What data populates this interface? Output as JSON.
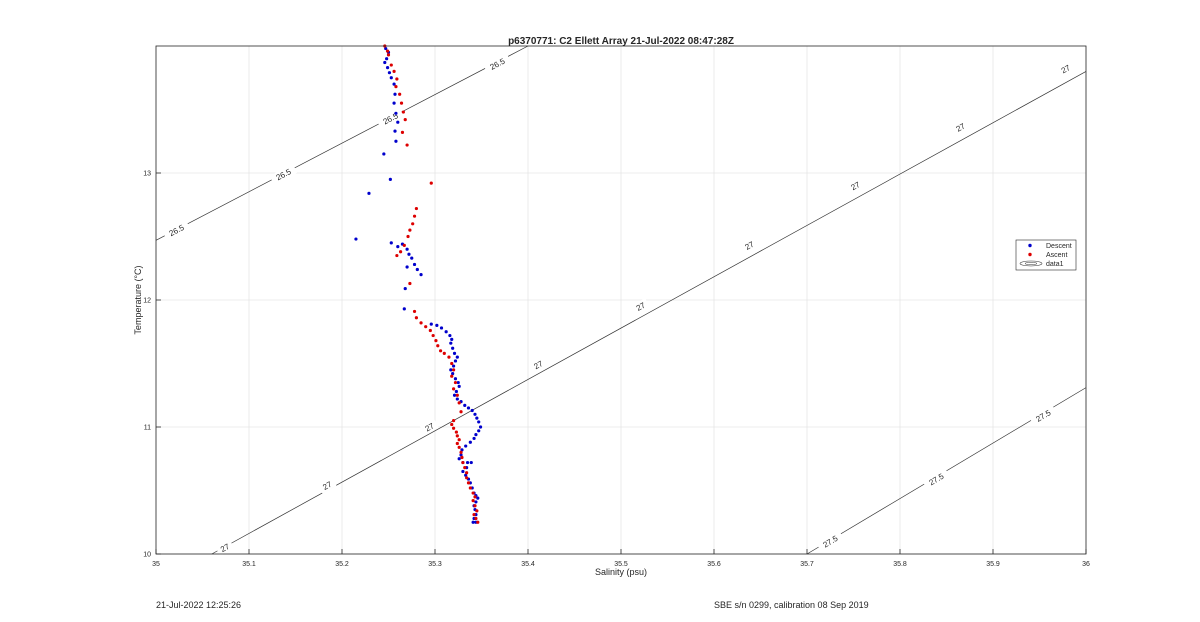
{
  "footer": {
    "left": "21-Jul-2022 12:25:26",
    "right": "SBE s/n 0299, calibration 08 Sep 2019"
  },
  "chart_data": {
    "type": "scatter",
    "title": "p6370771: C2 Ellett Array 21-Jul-2022 08:47:28Z",
    "xlabel": "Salinity (psu)",
    "ylabel": "Temperature (°C)",
    "xlim": [
      35,
      36
    ],
    "ylim": [
      10,
      14
    ],
    "x_ticks": [
      "35",
      "35.1",
      "35.2",
      "35.3",
      "35.4",
      "35.5",
      "35.6",
      "35.7",
      "35.8",
      "35.9",
      "36"
    ],
    "y_ticks": [
      "10",
      "11",
      "12",
      "13"
    ],
    "grid": true,
    "legend": {
      "placement": "right",
      "entries": [
        "Descent",
        "Ascent",
        "data1"
      ]
    },
    "colors": {
      "descent": "#0000cc",
      "ascent": "#dd0000",
      "contour": "#333333"
    },
    "contours": [
      {
        "label": "26.5",
        "points": [
          [
            35.0,
            12.47
          ],
          [
            35.4,
            14.0
          ]
        ],
        "label_positions": [
          [
            35.022,
            12.55
          ],
          [
            35.137,
            12.99
          ],
          [
            35.252,
            13.43
          ],
          [
            35.367,
            13.86
          ]
        ]
      },
      {
        "label": "27",
        "points": [
          [
            35.06,
            10.0
          ],
          [
            36.0,
            13.8
          ]
        ],
        "label_positions": [
          [
            35.074,
            10.05
          ],
          [
            35.184,
            10.54
          ],
          [
            35.294,
            11.0
          ],
          [
            35.411,
            11.49
          ],
          [
            35.521,
            11.95
          ],
          [
            35.638,
            12.43
          ],
          [
            35.752,
            12.9
          ],
          [
            35.865,
            13.36
          ],
          [
            35.978,
            13.82
          ]
        ]
      },
      {
        "label": "27.5",
        "points": [
          [
            35.7,
            10.0
          ],
          [
            36.0,
            11.31
          ]
        ],
        "label_positions": [
          [
            35.725,
            10.1
          ],
          [
            35.839,
            10.59
          ],
          [
            35.954,
            11.09
          ]
        ]
      }
    ],
    "series": [
      {
        "name": "Descent",
        "points": [
          [
            35.247,
            13.98
          ],
          [
            35.25,
            13.95
          ],
          [
            35.248,
            13.9
          ],
          [
            35.246,
            13.87
          ],
          [
            35.249,
            13.83
          ],
          [
            35.251,
            13.79
          ],
          [
            35.253,
            13.75
          ],
          [
            35.256,
            13.7
          ],
          [
            35.257,
            13.62
          ],
          [
            35.256,
            13.55
          ],
          [
            35.258,
            13.47
          ],
          [
            35.26,
            13.4
          ],
          [
            35.257,
            13.33
          ],
          [
            35.258,
            13.25
          ],
          [
            35.245,
            13.15
          ],
          [
            35.252,
            12.95
          ],
          [
            35.229,
            12.84
          ],
          [
            35.215,
            12.48
          ],
          [
            35.253,
            12.45
          ],
          [
            35.26,
            12.42
          ],
          [
            35.265,
            12.44
          ],
          [
            35.27,
            12.4
          ],
          [
            35.272,
            12.36
          ],
          [
            35.275,
            12.33
          ],
          [
            35.278,
            12.28
          ],
          [
            35.27,
            12.26
          ],
          [
            35.281,
            12.24
          ],
          [
            35.285,
            12.2
          ],
          [
            35.268,
            12.09
          ],
          [
            35.267,
            11.93
          ],
          [
            35.296,
            11.81
          ],
          [
            35.302,
            11.8
          ],
          [
            35.307,
            11.78
          ],
          [
            35.312,
            11.75
          ],
          [
            35.316,
            11.72
          ],
          [
            35.318,
            11.69
          ],
          [
            35.317,
            11.66
          ],
          [
            35.319,
            11.62
          ],
          [
            35.321,
            11.58
          ],
          [
            35.324,
            11.55
          ],
          [
            35.322,
            11.52
          ],
          [
            35.32,
            11.48
          ],
          [
            35.317,
            11.45
          ],
          [
            35.319,
            11.42
          ],
          [
            35.322,
            11.38
          ],
          [
            35.325,
            11.35
          ],
          [
            35.326,
            11.32
          ],
          [
            35.323,
            11.28
          ],
          [
            35.321,
            11.25
          ],
          [
            35.324,
            11.22
          ],
          [
            35.328,
            11.2
          ],
          [
            35.332,
            11.17
          ],
          [
            35.336,
            11.15
          ],
          [
            35.34,
            11.13
          ],
          [
            35.343,
            11.1
          ],
          [
            35.345,
            11.07
          ],
          [
            35.347,
            11.04
          ],
          [
            35.349,
            11.0
          ],
          [
            35.347,
            10.97
          ],
          [
            35.344,
            10.94
          ],
          [
            35.342,
            10.91
          ],
          [
            35.338,
            10.88
          ],
          [
            35.333,
            10.85
          ],
          [
            35.329,
            10.82
          ],
          [
            35.328,
            10.78
          ],
          [
            35.326,
            10.75
          ],
          [
            35.33,
            10.72
          ],
          [
            35.335,
            10.72
          ],
          [
            35.339,
            10.72
          ],
          [
            35.334,
            10.68
          ],
          [
            35.33,
            10.65
          ],
          [
            35.333,
            10.62
          ],
          [
            35.336,
            10.59
          ],
          [
            35.338,
            10.56
          ],
          [
            35.34,
            10.52
          ],
          [
            35.342,
            10.48
          ],
          [
            35.344,
            10.46
          ],
          [
            35.346,
            10.44
          ],
          [
            35.344,
            10.41
          ],
          [
            35.342,
            10.38
          ],
          [
            35.343,
            10.35
          ],
          [
            35.344,
            10.31
          ],
          [
            35.342,
            10.28
          ],
          [
            35.341,
            10.25
          ],
          [
            35.344,
            10.25
          ]
        ]
      },
      {
        "name": "Ascent",
        "points": [
          [
            35.246,
            14.0
          ],
          [
            35.249,
            13.96
          ],
          [
            35.25,
            13.93
          ],
          [
            35.253,
            13.85
          ],
          [
            35.256,
            13.8
          ],
          [
            35.259,
            13.74
          ],
          [
            35.258,
            13.68
          ],
          [
            35.262,
            13.62
          ],
          [
            35.264,
            13.55
          ],
          [
            35.266,
            13.48
          ],
          [
            35.268,
            13.42
          ],
          [
            35.265,
            13.32
          ],
          [
            35.27,
            13.22
          ],
          [
            35.296,
            12.92
          ],
          [
            35.28,
            12.72
          ],
          [
            35.278,
            12.66
          ],
          [
            35.276,
            12.6
          ],
          [
            35.273,
            12.55
          ],
          [
            35.271,
            12.5
          ],
          [
            35.267,
            12.43
          ],
          [
            35.263,
            12.38
          ],
          [
            35.259,
            12.35
          ],
          [
            35.273,
            12.13
          ],
          [
            35.278,
            11.91
          ],
          [
            35.28,
            11.86
          ],
          [
            35.285,
            11.82
          ],
          [
            35.29,
            11.79
          ],
          [
            35.295,
            11.76
          ],
          [
            35.298,
            11.72
          ],
          [
            35.301,
            11.68
          ],
          [
            35.303,
            11.64
          ],
          [
            35.306,
            11.6
          ],
          [
            35.31,
            11.58
          ],
          [
            35.315,
            11.55
          ],
          [
            35.318,
            11.5
          ],
          [
            35.32,
            11.45
          ],
          [
            35.318,
            11.4
          ],
          [
            35.322,
            11.35
          ],
          [
            35.32,
            11.3
          ],
          [
            35.324,
            11.25
          ],
          [
            35.326,
            11.19
          ],
          [
            35.328,
            11.12
          ],
          [
            35.32,
            11.05
          ],
          [
            35.318,
            11.02
          ],
          [
            35.32,
            10.99
          ],
          [
            35.323,
            10.96
          ],
          [
            35.324,
            10.93
          ],
          [
            35.326,
            10.9
          ],
          [
            35.324,
            10.87
          ],
          [
            35.326,
            10.84
          ],
          [
            35.328,
            10.8
          ],
          [
            35.329,
            10.76
          ],
          [
            35.33,
            10.72
          ],
          [
            35.332,
            10.68
          ],
          [
            35.334,
            10.64
          ],
          [
            35.334,
            10.6
          ],
          [
            35.336,
            10.56
          ],
          [
            35.338,
            10.52
          ],
          [
            35.341,
            10.48
          ],
          [
            35.343,
            10.45
          ],
          [
            35.341,
            10.42
          ],
          [
            35.343,
            10.38
          ],
          [
            35.345,
            10.34
          ],
          [
            35.342,
            10.31
          ],
          [
            35.344,
            10.28
          ],
          [
            35.346,
            10.25
          ]
        ]
      }
    ]
  }
}
